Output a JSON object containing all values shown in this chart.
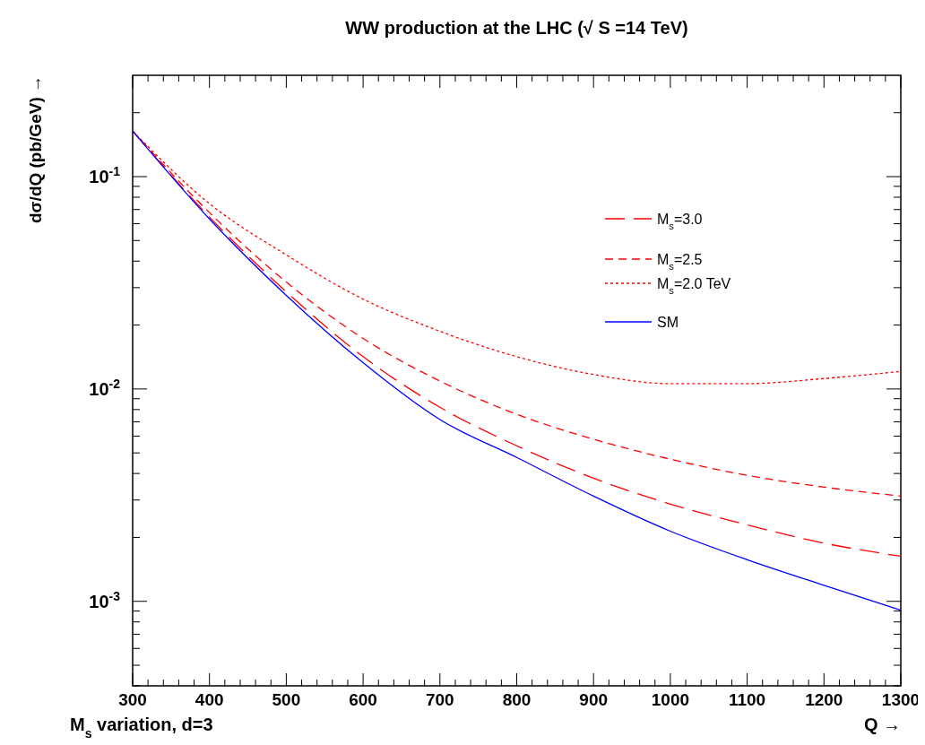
{
  "chart_data": {
    "type": "line",
    "title": "WW production at the LHC (√ S =14 TeV)",
    "xlabel": "Q →",
    "ylabel": "dσ/dQ (pb/GeV) →",
    "annotations": [
      "M$_{s}$ variation,  d=3"
    ],
    "x": [
      300,
      400,
      500,
      600,
      700,
      800,
      900,
      1000,
      1100,
      1200,
      1300
    ],
    "series": [
      {
        "name": "M$_{s}$=3.0",
        "color": "#ff0000",
        "line_style": "longdash",
        "values": [
          0.164,
          0.0645,
          0.0287,
          0.0142,
          0.0082,
          0.0054,
          0.0038,
          0.00287,
          0.00229,
          0.00188,
          0.00163
        ]
      },
      {
        "name": "M$_{s}$=2.5",
        "color": "#ff0000",
        "line_style": "dashed",
        "values": [
          0.164,
          0.0677,
          0.0319,
          0.0173,
          0.0109,
          0.0076,
          0.0058,
          0.00467,
          0.00392,
          0.00345,
          0.00313
        ]
      },
      {
        "name": "M$_{s}$=2.0 TeV",
        "color": "#ff0000",
        "line_style": "dotted",
        "values": [
          0.164,
          0.0746,
          0.0428,
          0.0265,
          0.0187,
          0.0142,
          0.0117,
          0.0106,
          0.0106,
          0.0112,
          0.0121
        ]
      },
      {
        "name": "SM",
        "color": "#0000ff",
        "line_style": "solid",
        "values": [
          0.164,
          0.0632,
          0.0276,
          0.0133,
          0.00718,
          0.00476,
          0.00313,
          0.00214,
          0.00157,
          0.00119,
          0.000908
        ]
      }
    ],
    "xlim": [
      300,
      1300
    ],
    "xticks": [
      300,
      400,
      500,
      600,
      700,
      800,
      900,
      1000,
      1100,
      1200,
      1300
    ],
    "ylim": [
      0.0004,
      0.3
    ],
    "yticks": [
      {
        "value": 0.1,
        "label": "10$^{-1}$"
      },
      {
        "value": 0.01,
        "label": "10$^{-2}$"
      },
      {
        "value": 0.001,
        "label": "10$^{-3}$"
      }
    ],
    "log": "y",
    "legend": "right",
    "grid": false
  }
}
